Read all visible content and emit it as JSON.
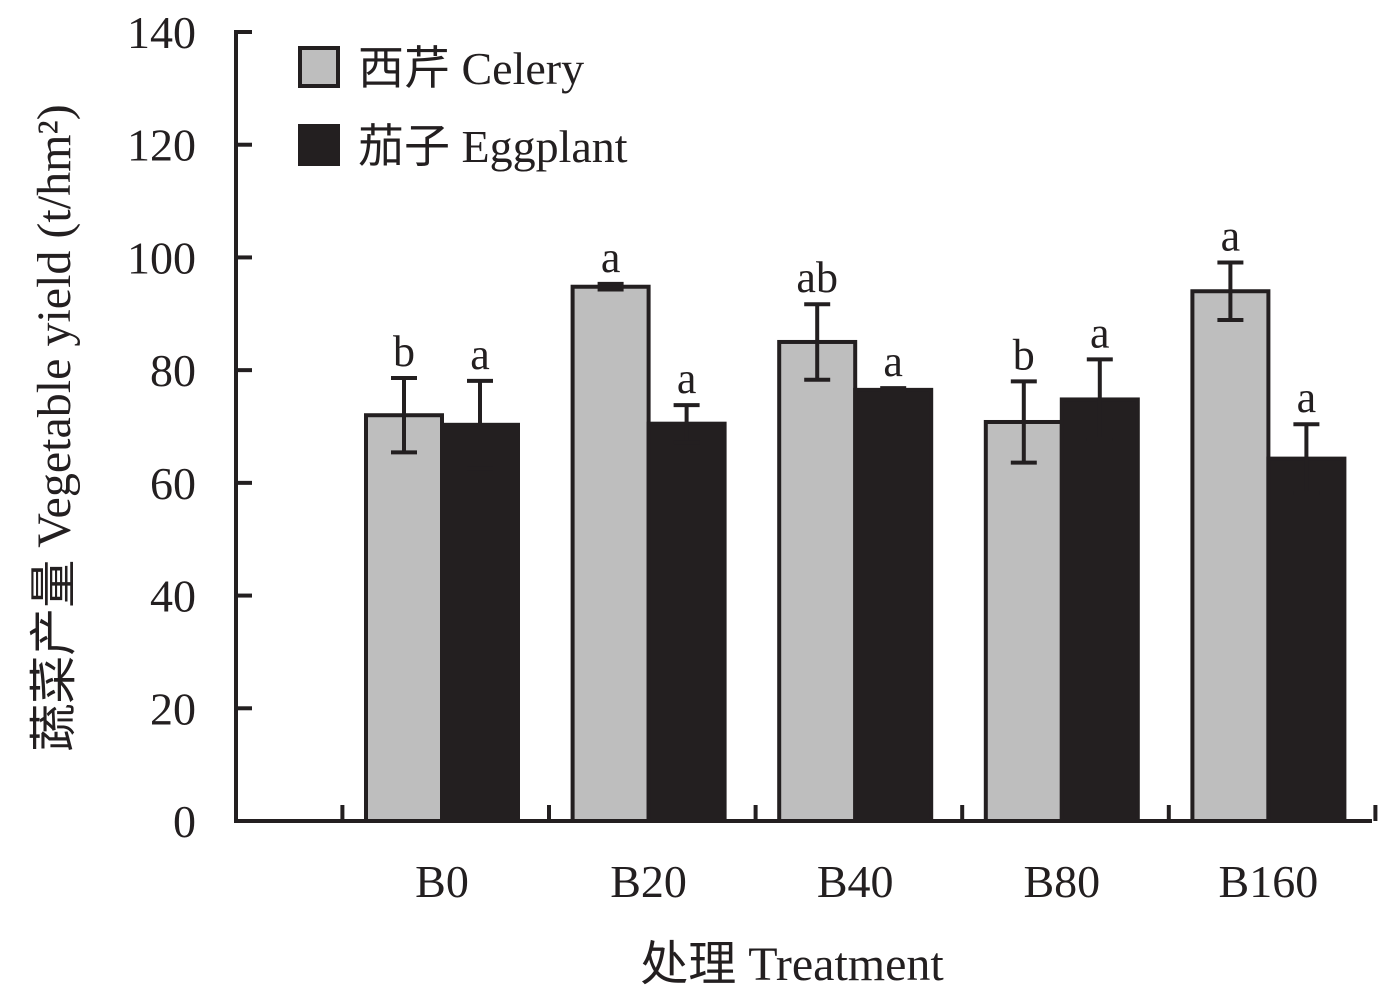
{
  "chart_data": {
    "type": "bar",
    "categories": [
      "B0",
      "B20",
      "B40",
      "B80",
      "B160"
    ],
    "series": [
      {
        "name": "西芹 Celery",
        "color": "#bebebe",
        "values": [
          72,
          94.8,
          85,
          70.8,
          94
        ],
        "errors": [
          6.6,
          0.5,
          6.7,
          7.2,
          5.1
        ],
        "labels": [
          "b",
          "a",
          "ab",
          "b",
          "a"
        ]
      },
      {
        "name": "茄子 Eggplant",
        "color": "#231f20",
        "values": [
          70.3,
          70.5,
          76.5,
          74.8,
          64.3
        ],
        "errors": [
          7.8,
          3.3,
          0.3,
          7.1,
          6.1
        ],
        "labels": [
          "a",
          "a",
          "a",
          "a",
          "a"
        ]
      }
    ],
    "yticks": [
      0,
      20,
      40,
      60,
      80,
      100,
      120,
      140
    ],
    "ylim": [
      0,
      140
    ],
    "xlabel": "处理 Treatment",
    "ylabel": "蔬菜产量 Vegetable yield (t/hm²)",
    "legend_position": "top-left"
  }
}
